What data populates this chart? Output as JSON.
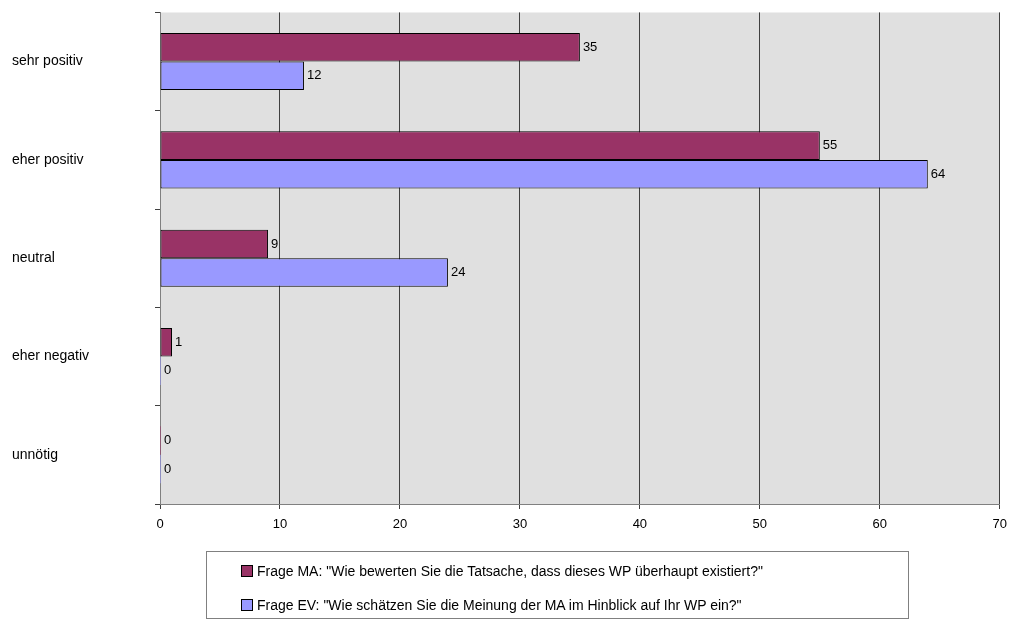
{
  "chart_data": {
    "type": "bar",
    "orientation": "horizontal",
    "categories": [
      "sehr positiv",
      "eher positiv",
      "neutral",
      "eher negativ",
      "unnötig"
    ],
    "series": [
      {
        "name": "Frage MA: \"Wie bewerten Sie die Tatsache, dass dieses WP überhaupt existiert?\"",
        "color": "#993366",
        "values": [
          35,
          55,
          9,
          1,
          0
        ]
      },
      {
        "name": "Frage EV: \"Wie schätzen Sie die Meinung der MA im Hinblick auf Ihr WP ein?\"",
        "color": "#9999ff",
        "values": [
          12,
          64,
          24,
          0,
          0
        ]
      }
    ],
    "xlim": [
      0,
      70
    ],
    "xticks": [
      0,
      10,
      20,
      30,
      40,
      50,
      60,
      70
    ],
    "grid": "x",
    "legend": "bottom",
    "data_labels": true
  }
}
